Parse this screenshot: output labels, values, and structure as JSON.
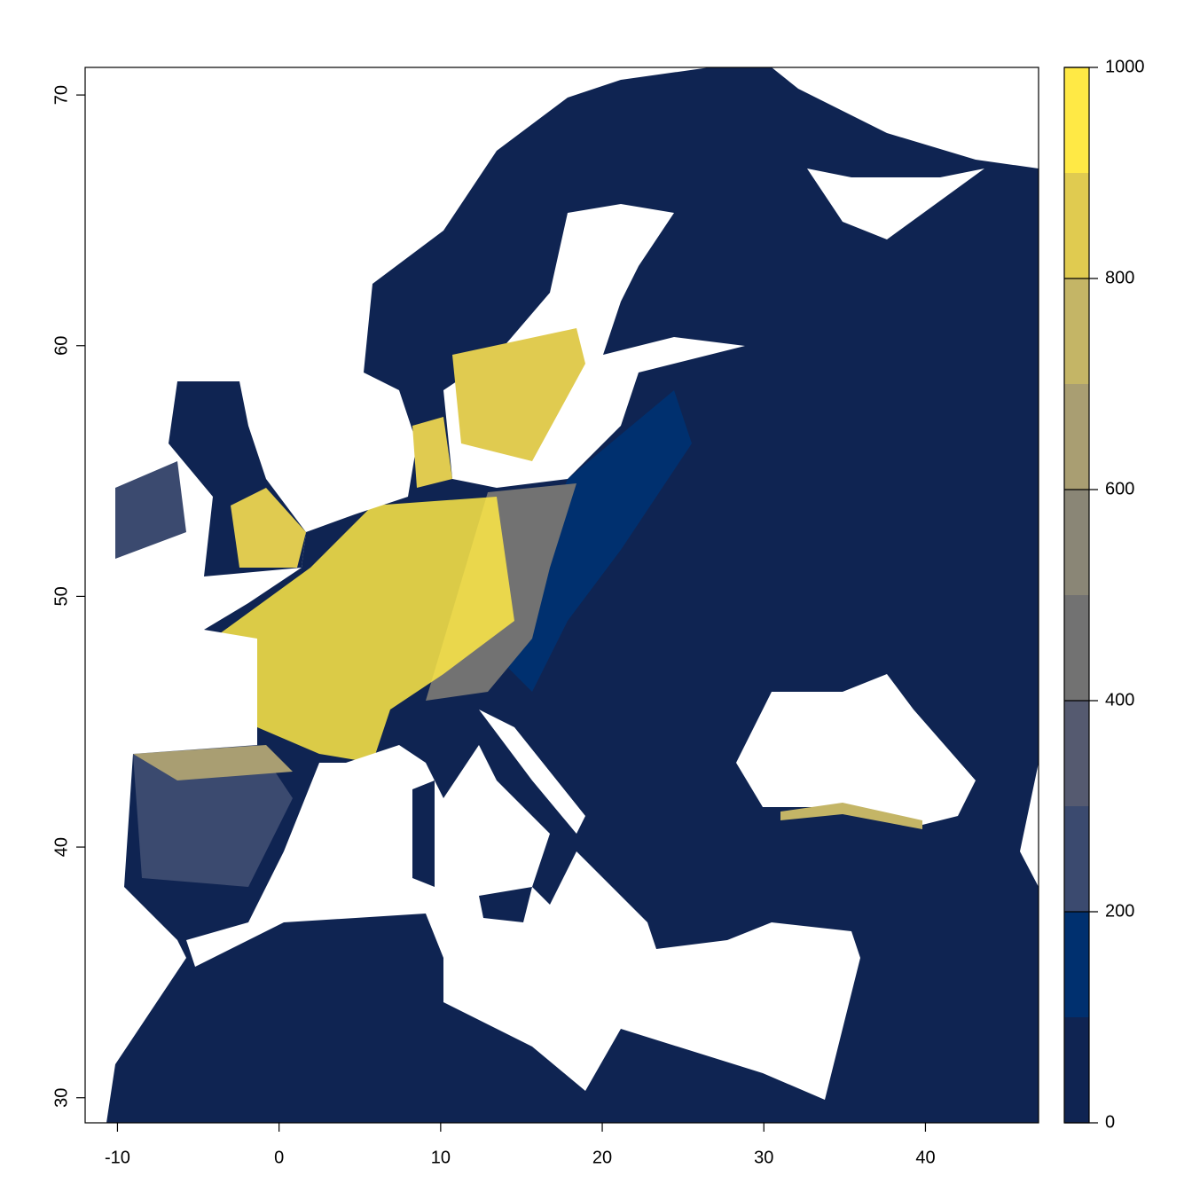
{
  "chart_data": {
    "type": "raster",
    "xlim": [
      -12,
      47
    ],
    "xticks": [
      -10,
      0,
      10,
      20,
      30,
      40
    ],
    "ylim": [
      29,
      71.1
    ],
    "yticks": [
      30,
      40,
      50,
      60,
      70
    ],
    "colorbar": {
      "lim": [
        0,
        1000
      ],
      "ticks": [
        0,
        200,
        400,
        600,
        800,
        1000
      ],
      "breaks": [
        0,
        100,
        200,
        300,
        400,
        500,
        600,
        700,
        800,
        900,
        1000
      ],
      "colors": [
        "#0f2452",
        "#00306f",
        "#3b4a6f",
        "#555a70",
        "#727272",
        "#8a8676",
        "#a99e72",
        "#c4b566",
        "#e0cb50",
        "#ffe945"
      ]
    }
  }
}
